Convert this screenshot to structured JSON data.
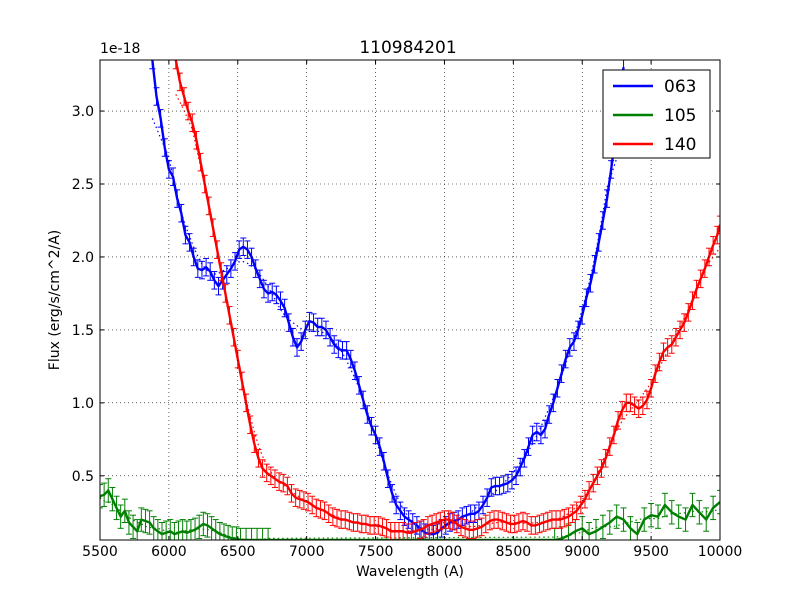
{
  "chart_data": {
    "type": "line",
    "title": "110984201",
    "xlabel": "Wavelength (A)",
    "ylabel": "Flux (erg/s/cm^2/A)",
    "offset_text": "1e-18",
    "xlim": [
      5500,
      10000
    ],
    "ylim": [
      0.06,
      3.35
    ],
    "x_ticks": [
      5500,
      6000,
      6500,
      7000,
      7500,
      8000,
      8500,
      9000,
      9500,
      10000
    ],
    "x_tick_labels": [
      "5500",
      "6000",
      "6500",
      "7000",
      "7500",
      "8000",
      "8500",
      "9000",
      "9500",
      "10000"
    ],
    "y_ticks": [
      0.5,
      1.0,
      1.5,
      2.0,
      2.5,
      3.0
    ],
    "y_tick_labels": [
      "0.5",
      "1.0",
      "1.5",
      "2.0",
      "2.5",
      "3.0"
    ],
    "grid": true,
    "legend_position": "top-right",
    "series": [
      {
        "name": "063",
        "color": "#0000ff",
        "points": [
          [
            5880,
            3.35
          ],
          [
            5910,
            3.1
          ],
          [
            5940,
            2.95
          ],
          [
            5970,
            2.75
          ],
          [
            6000,
            2.6
          ],
          [
            6030,
            2.55
          ],
          [
            6060,
            2.4
          ],
          [
            6090,
            2.3
          ],
          [
            6120,
            2.15
          ],
          [
            6150,
            2.1
          ],
          [
            6180,
            2.0
          ],
          [
            6210,
            1.92
          ],
          [
            6240,
            1.91
          ],
          [
            6270,
            1.93
          ],
          [
            6300,
            1.9
          ],
          [
            6330,
            1.84
          ],
          [
            6360,
            1.8
          ],
          [
            6390,
            1.84
          ],
          [
            6420,
            1.88
          ],
          [
            6450,
            1.92
          ],
          [
            6480,
            1.97
          ],
          [
            6510,
            2.05
          ],
          [
            6540,
            2.07
          ],
          [
            6570,
            2.05
          ],
          [
            6600,
            2.0
          ],
          [
            6630,
            1.92
          ],
          [
            6660,
            1.85
          ],
          [
            6690,
            1.78
          ],
          [
            6720,
            1.75
          ],
          [
            6750,
            1.76
          ],
          [
            6780,
            1.74
          ],
          [
            6810,
            1.7
          ],
          [
            6840,
            1.65
          ],
          [
            6870,
            1.55
          ],
          [
            6900,
            1.45
          ],
          [
            6930,
            1.38
          ],
          [
            6960,
            1.42
          ],
          [
            6990,
            1.5
          ],
          [
            7020,
            1.56
          ],
          [
            7050,
            1.55
          ],
          [
            7080,
            1.52
          ],
          [
            7110,
            1.52
          ],
          [
            7140,
            1.5
          ],
          [
            7170,
            1.45
          ],
          [
            7200,
            1.4
          ],
          [
            7230,
            1.37
          ],
          [
            7260,
            1.36
          ],
          [
            7290,
            1.36
          ],
          [
            7320,
            1.3
          ],
          [
            7350,
            1.22
          ],
          [
            7380,
            1.12
          ],
          [
            7410,
            1.02
          ],
          [
            7440,
            0.92
          ],
          [
            7470,
            0.84
          ],
          [
            7500,
            0.78
          ],
          [
            7530,
            0.7
          ],
          [
            7560,
            0.6
          ],
          [
            7590,
            0.48
          ],
          [
            7620,
            0.38
          ],
          [
            7650,
            0.3
          ],
          [
            7680,
            0.26
          ],
          [
            7710,
            0.22
          ],
          [
            7740,
            0.2
          ],
          [
            7770,
            0.18
          ],
          [
            7800,
            0.16
          ],
          [
            7830,
            0.13
          ],
          [
            7860,
            0.11
          ],
          [
            7890,
            0.1
          ],
          [
            7920,
            0.1
          ],
          [
            7950,
            0.11
          ],
          [
            7980,
            0.14
          ],
          [
            8010,
            0.16
          ],
          [
            8040,
            0.18
          ],
          [
            8070,
            0.19
          ],
          [
            8100,
            0.2
          ],
          [
            8130,
            0.22
          ],
          [
            8160,
            0.23
          ],
          [
            8190,
            0.24
          ],
          [
            8220,
            0.24
          ],
          [
            8250,
            0.26
          ],
          [
            8280,
            0.3
          ],
          [
            8310,
            0.35
          ],
          [
            8340,
            0.42
          ],
          [
            8370,
            0.43
          ],
          [
            8400,
            0.43
          ],
          [
            8430,
            0.44
          ],
          [
            8460,
            0.45
          ],
          [
            8490,
            0.47
          ],
          [
            8520,
            0.5
          ],
          [
            8550,
            0.56
          ],
          [
            8580,
            0.62
          ],
          [
            8610,
            0.7
          ],
          [
            8640,
            0.78
          ],
          [
            8670,
            0.8
          ],
          [
            8700,
            0.78
          ],
          [
            8730,
            0.82
          ],
          [
            8760,
            0.92
          ],
          [
            8790,
            1.0
          ],
          [
            8820,
            1.1
          ],
          [
            8850,
            1.2
          ],
          [
            8880,
            1.3
          ],
          [
            8910,
            1.38
          ],
          [
            8940,
            1.42
          ],
          [
            8970,
            1.5
          ],
          [
            9000,
            1.6
          ],
          [
            9030,
            1.72
          ],
          [
            9060,
            1.82
          ],
          [
            9090,
            1.95
          ],
          [
            9120,
            2.1
          ],
          [
            9150,
            2.25
          ],
          [
            9180,
            2.4
          ],
          [
            9210,
            2.6
          ],
          [
            9240,
            2.82
          ],
          [
            9270,
            3.05
          ],
          [
            9300,
            3.3
          ]
        ],
        "errors": 0.06
      },
      {
        "name": "105",
        "color": "#008000",
        "points": [
          [
            5500,
            0.36
          ],
          [
            5530,
            0.37
          ],
          [
            5560,
            0.4
          ],
          [
            5590,
            0.34
          ],
          [
            5620,
            0.28
          ],
          [
            5650,
            0.22
          ],
          [
            5680,
            0.26
          ],
          [
            5710,
            0.18
          ],
          [
            5740,
            0.15
          ],
          [
            5770,
            0.12
          ],
          [
            5800,
            0.2
          ],
          [
            5830,
            0.19
          ],
          [
            5860,
            0.18
          ],
          [
            5890,
            0.14
          ],
          [
            5920,
            0.12
          ],
          [
            5950,
            0.1
          ],
          [
            5980,
            0.11
          ],
          [
            6010,
            0.12
          ],
          [
            6040,
            0.1
          ],
          [
            6070,
            0.11
          ],
          [
            6100,
            0.12
          ],
          [
            6130,
            0.11
          ],
          [
            6160,
            0.12
          ],
          [
            6190,
            0.13
          ],
          [
            6220,
            0.15
          ],
          [
            6250,
            0.17
          ],
          [
            6280,
            0.16
          ],
          [
            6310,
            0.14
          ],
          [
            6340,
            0.12
          ],
          [
            6370,
            0.1
          ],
          [
            6400,
            0.09
          ],
          [
            6430,
            0.08
          ],
          [
            6460,
            0.07
          ],
          [
            6490,
            0.07
          ],
          [
            6520,
            0.06
          ],
          [
            6560,
            0.06
          ],
          [
            6600,
            0.06
          ],
          [
            6640,
            0.06
          ],
          [
            6680,
            0.06
          ],
          [
            6720,
            0.06
          ],
          [
            8800,
            0.06
          ],
          [
            8850,
            0.07
          ],
          [
            8900,
            0.09
          ],
          [
            8950,
            0.12
          ],
          [
            9000,
            0.14
          ],
          [
            9050,
            0.1
          ],
          [
            9100,
            0.12
          ],
          [
            9150,
            0.15
          ],
          [
            9200,
            0.18
          ],
          [
            9250,
            0.22
          ],
          [
            9300,
            0.2
          ],
          [
            9350,
            0.14
          ],
          [
            9400,
            0.1
          ],
          [
            9450,
            0.2
          ],
          [
            9500,
            0.23
          ],
          [
            9550,
            0.22
          ],
          [
            9600,
            0.3
          ],
          [
            9650,
            0.25
          ],
          [
            9700,
            0.22
          ],
          [
            9750,
            0.2
          ],
          [
            9800,
            0.3
          ],
          [
            9850,
            0.25
          ],
          [
            9900,
            0.2
          ],
          [
            9950,
            0.28
          ],
          [
            10000,
            0.32
          ]
        ],
        "errors": 0.08
      },
      {
        "name": "140",
        "color": "#ff0000",
        "points": [
          [
            6050,
            3.35
          ],
          [
            6080,
            3.2
          ],
          [
            6110,
            3.1
          ],
          [
            6140,
            3.0
          ],
          [
            6170,
            2.92
          ],
          [
            6200,
            2.8
          ],
          [
            6230,
            2.65
          ],
          [
            6260,
            2.5
          ],
          [
            6290,
            2.35
          ],
          [
            6320,
            2.2
          ],
          [
            6350,
            2.05
          ],
          [
            6380,
            1.9
          ],
          [
            6410,
            1.75
          ],
          [
            6440,
            1.6
          ],
          [
            6470,
            1.45
          ],
          [
            6500,
            1.3
          ],
          [
            6530,
            1.15
          ],
          [
            6560,
            1.0
          ],
          [
            6590,
            0.85
          ],
          [
            6620,
            0.72
          ],
          [
            6650,
            0.62
          ],
          [
            6680,
            0.55
          ],
          [
            6710,
            0.52
          ],
          [
            6740,
            0.5
          ],
          [
            6770,
            0.48
          ],
          [
            6800,
            0.46
          ],
          [
            6830,
            0.45
          ],
          [
            6860,
            0.43
          ],
          [
            6890,
            0.38
          ],
          [
            6920,
            0.35
          ],
          [
            6950,
            0.34
          ],
          [
            6980,
            0.33
          ],
          [
            7010,
            0.32
          ],
          [
            7040,
            0.3
          ],
          [
            7070,
            0.28
          ],
          [
            7100,
            0.27
          ],
          [
            7130,
            0.26
          ],
          [
            7160,
            0.24
          ],
          [
            7190,
            0.22
          ],
          [
            7220,
            0.21
          ],
          [
            7250,
            0.2
          ],
          [
            7280,
            0.2
          ],
          [
            7310,
            0.19
          ],
          [
            7340,
            0.18
          ],
          [
            7370,
            0.18
          ],
          [
            7400,
            0.17
          ],
          [
            7430,
            0.17
          ],
          [
            7460,
            0.16
          ],
          [
            7490,
            0.16
          ],
          [
            7520,
            0.16
          ],
          [
            7550,
            0.15
          ],
          [
            7580,
            0.14
          ],
          [
            7610,
            0.12
          ],
          [
            7640,
            0.12
          ],
          [
            7670,
            0.12
          ],
          [
            7700,
            0.12
          ],
          [
            7730,
            0.11
          ],
          [
            7760,
            0.11
          ],
          [
            7790,
            0.12
          ],
          [
            7820,
            0.13
          ],
          [
            7850,
            0.14
          ],
          [
            7880,
            0.16
          ],
          [
            7910,
            0.17
          ],
          [
            7940,
            0.18
          ],
          [
            7970,
            0.19
          ],
          [
            8000,
            0.2
          ],
          [
            8030,
            0.2
          ],
          [
            8060,
            0.19
          ],
          [
            8090,
            0.17
          ],
          [
            8120,
            0.15
          ],
          [
            8150,
            0.14
          ],
          [
            8180,
            0.13
          ],
          [
            8210,
            0.13
          ],
          [
            8240,
            0.14
          ],
          [
            8270,
            0.15
          ],
          [
            8300,
            0.17
          ],
          [
            8330,
            0.19
          ],
          [
            8360,
            0.2
          ],
          [
            8390,
            0.2
          ],
          [
            8420,
            0.19
          ],
          [
            8450,
            0.18
          ],
          [
            8480,
            0.17
          ],
          [
            8510,
            0.17
          ],
          [
            8540,
            0.18
          ],
          [
            8570,
            0.19
          ],
          [
            8600,
            0.18
          ],
          [
            8630,
            0.16
          ],
          [
            8660,
            0.16
          ],
          [
            8690,
            0.17
          ],
          [
            8720,
            0.18
          ],
          [
            8750,
            0.19
          ],
          [
            8780,
            0.2
          ],
          [
            8810,
            0.2
          ],
          [
            8840,
            0.2
          ],
          [
            8870,
            0.21
          ],
          [
            8900,
            0.22
          ],
          [
            8930,
            0.24
          ],
          [
            8960,
            0.26
          ],
          [
            8990,
            0.3
          ],
          [
            9020,
            0.34
          ],
          [
            9050,
            0.4
          ],
          [
            9080,
            0.45
          ],
          [
            9110,
            0.5
          ],
          [
            9140,
            0.55
          ],
          [
            9170,
            0.62
          ],
          [
            9200,
            0.7
          ],
          [
            9230,
            0.78
          ],
          [
            9260,
            0.88
          ],
          [
            9290,
            0.95
          ],
          [
            9320,
            1.0
          ],
          [
            9350,
            1.0
          ],
          [
            9380,
            0.98
          ],
          [
            9410,
            0.96
          ],
          [
            9440,
            0.98
          ],
          [
            9470,
            1.02
          ],
          [
            9500,
            1.1
          ],
          [
            9530,
            1.2
          ],
          [
            9560,
            1.28
          ],
          [
            9590,
            1.35
          ],
          [
            9620,
            1.38
          ],
          [
            9650,
            1.4
          ],
          [
            9680,
            1.45
          ],
          [
            9710,
            1.5
          ],
          [
            9740,
            1.55
          ],
          [
            9770,
            1.62
          ],
          [
            9800,
            1.7
          ],
          [
            9830,
            1.78
          ],
          [
            9860,
            1.85
          ],
          [
            9890,
            1.92
          ],
          [
            9920,
            2.0
          ],
          [
            9950,
            2.08
          ],
          [
            9980,
            2.15
          ],
          [
            10000,
            2.22
          ]
        ],
        "errors": 0.06
      }
    ]
  }
}
